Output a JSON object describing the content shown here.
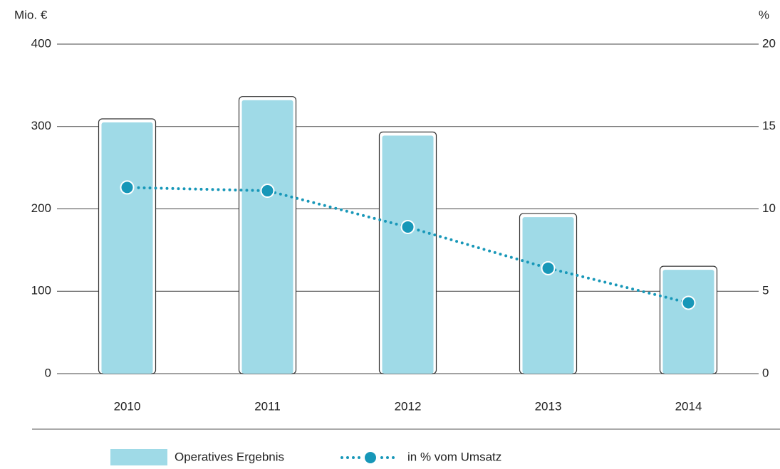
{
  "chart_data": {
    "type": "bar_line",
    "y_label": "Mio. €",
    "y2_label": "%",
    "categories": [
      "2010",
      "2011",
      "2012",
      "2013",
      "2014"
    ],
    "series": [
      {
        "name": "Operatives Ergebnis",
        "type": "bar",
        "color": "#9fdae7",
        "values": [
          305,
          332,
          289,
          190,
          126
        ]
      },
      {
        "name": "in % vom Umsatz",
        "type": "line",
        "color": "#1797b8",
        "axis": "y2",
        "values": [
          11.3,
          11.1,
          8.9,
          6.4,
          4.3
        ]
      }
    ],
    "ylim": [
      0,
      400
    ],
    "yticks": [
      0,
      100,
      200,
      300,
      400
    ],
    "y2lim": [
      0,
      20
    ],
    "y2ticks": [
      0,
      5,
      10,
      15,
      20
    ],
    "grid": true,
    "legend": "bottom"
  }
}
